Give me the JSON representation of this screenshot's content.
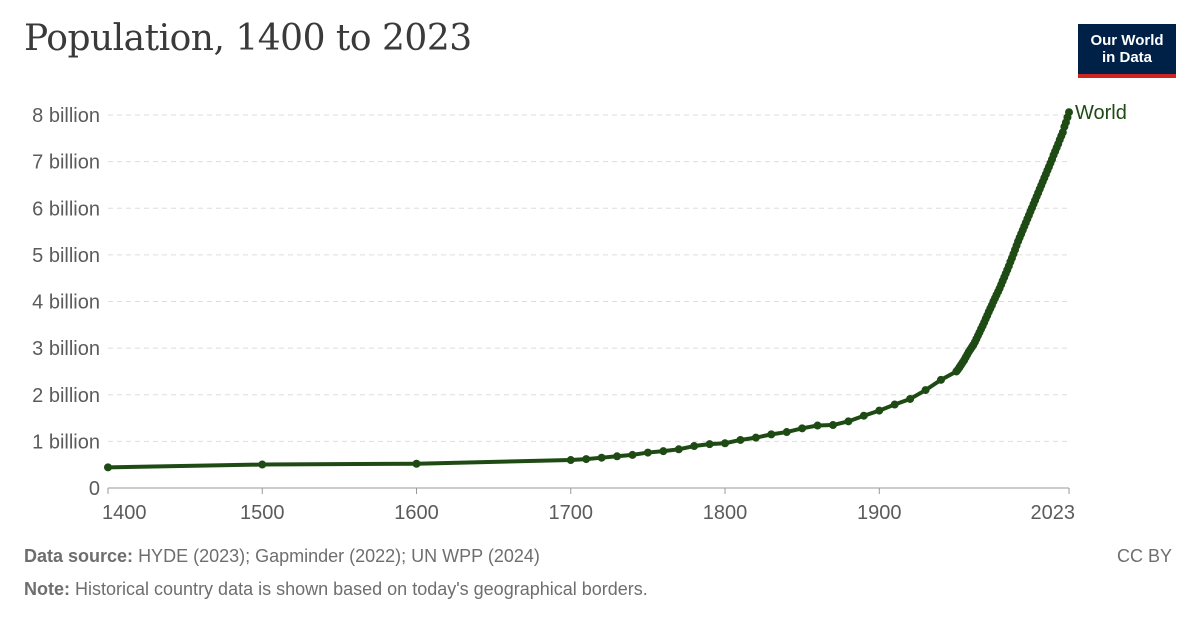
{
  "header": {
    "title": "Population, 1400 to 2023",
    "logo_line1": "Our World",
    "logo_line2": "in Data"
  },
  "footer": {
    "source_label": "Data source:",
    "source_text": "HYDE (2023); Gapminder (2022); UN WPP (2024)",
    "note_label": "Note:",
    "note_text": "Historical country data is shown based on today's geographical borders.",
    "license": "CC BY"
  },
  "colors": {
    "series": "#1e4a14",
    "grid": "#dddddd",
    "axis_text": "#5b5b5b",
    "logo_bg": "#002147",
    "logo_accent": "#ce261e"
  },
  "chart_data": {
    "type": "line",
    "xlim": [
      1400,
      2023
    ],
    "ylim": [
      0,
      8000000000
    ],
    "x_ticks": [
      1400,
      1500,
      1600,
      1700,
      1800,
      1900,
      2023
    ],
    "y_ticks": [
      {
        "value": 0,
        "label": "0"
      },
      {
        "value": 1000000000,
        "label": "1 billion"
      },
      {
        "value": 2000000000,
        "label": "2 billion"
      },
      {
        "value": 3000000000,
        "label": "3 billion"
      },
      {
        "value": 4000000000,
        "label": "4 billion"
      },
      {
        "value": 5000000000,
        "label": "5 billion"
      },
      {
        "value": 6000000000,
        "label": "6 billion"
      },
      {
        "value": 7000000000,
        "label": "7 billion"
      },
      {
        "value": 8000000000,
        "label": "8 billion"
      }
    ],
    "grid": "horizontal dashed",
    "series": [
      {
        "name": "World",
        "x": [
          1400,
          1500,
          1600,
          1700,
          1710,
          1720,
          1730,
          1740,
          1750,
          1760,
          1770,
          1780,
          1790,
          1800,
          1810,
          1820,
          1830,
          1840,
          1850,
          1860,
          1870,
          1880,
          1890,
          1900,
          1910,
          1920,
          1930,
          1940,
          1950,
          1951,
          1952,
          1953,
          1954,
          1955,
          1956,
          1957,
          1958,
          1959,
          1960,
          1961,
          1962,
          1963,
          1964,
          1965,
          1966,
          1967,
          1968,
          1969,
          1970,
          1971,
          1972,
          1973,
          1974,
          1975,
          1976,
          1977,
          1978,
          1979,
          1980,
          1981,
          1982,
          1983,
          1984,
          1985,
          1986,
          1987,
          1988,
          1989,
          1990,
          1991,
          1992,
          1993,
          1994,
          1995,
          1996,
          1997,
          1998,
          1999,
          2000,
          2001,
          2002,
          2003,
          2004,
          2005,
          2006,
          2007,
          2008,
          2009,
          2010,
          2011,
          2012,
          2013,
          2014,
          2015,
          2016,
          2017,
          2018,
          2019,
          2020,
          2021,
          2022,
          2023
        ],
        "y": [
          443000000,
          503000000,
          520000000,
          600000000,
          620000000,
          650000000,
          680000000,
          710000000,
          760000000,
          790000000,
          830000000,
          900000000,
          940000000,
          960000000,
          1030000000,
          1080000000,
          1150000000,
          1200000000,
          1280000000,
          1340000000,
          1350000000,
          1430000000,
          1550000000,
          1660000000,
          1790000000,
          1910000000,
          2100000000,
          2320000000,
          2500000000,
          2540000000,
          2590000000,
          2640000000,
          2690000000,
          2740000000,
          2800000000,
          2860000000,
          2920000000,
          2970000000,
          3020000000,
          3070000000,
          3130000000,
          3200000000,
          3270000000,
          3340000000,
          3410000000,
          3480000000,
          3550000000,
          3630000000,
          3700000000,
          3780000000,
          3850000000,
          3920000000,
          4000000000,
          4070000000,
          4140000000,
          4210000000,
          4280000000,
          4360000000,
          4440000000,
          4520000000,
          4600000000,
          4680000000,
          4760000000,
          4850000000,
          4930000000,
          5020000000,
          5110000000,
          5200000000,
          5290000000,
          5370000000,
          5450000000,
          5530000000,
          5610000000,
          5690000000,
          5770000000,
          5850000000,
          5930000000,
          6010000000,
          6090000000,
          6170000000,
          6250000000,
          6330000000,
          6410000000,
          6490000000,
          6570000000,
          6650000000,
          6730000000,
          6810000000,
          6890000000,
          6970000000,
          7050000000,
          7140000000,
          7220000000,
          7300000000,
          7380000000,
          7470000000,
          7550000000,
          7630000000,
          7750000000,
          7840000000,
          7950000000,
          8060000000
        ]
      }
    ]
  }
}
